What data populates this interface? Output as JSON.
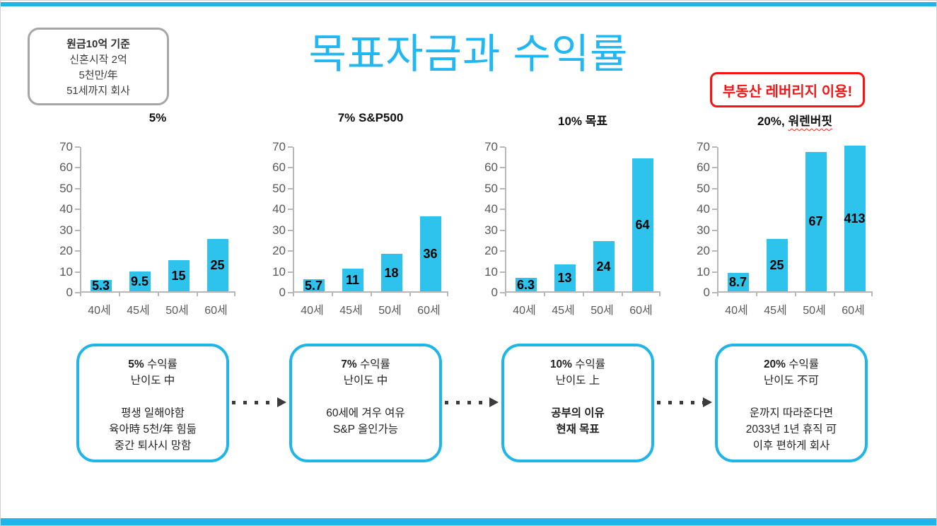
{
  "slide": {
    "title": "목표자금과 수익률",
    "colors": {
      "accent_cyan": "#1fb5e9",
      "bar_cyan": "#2dc3ed",
      "title_cyan": "#20b7f2",
      "alert_red": "#f81414",
      "axis_gray": "#b7b7b7",
      "tick_text_gray": "#595959",
      "info_border_gray": "#a6a6a6"
    }
  },
  "info_box": {
    "lines": [
      "원금10억 기준",
      "신혼시작 2억",
      "5천만/年",
      "51세까지 회사"
    ]
  },
  "alert_box": {
    "label": "부동산 레버리지 이용!"
  },
  "chart_data": [
    {
      "type": "bar",
      "title": "5%",
      "categories": [
        "40세",
        "45세",
        "50세",
        "60세"
      ],
      "values": [
        5.3,
        9.5,
        15,
        25
      ],
      "labels": [
        "5.3",
        "9.5",
        "15",
        "25"
      ],
      "ylim": [
        0,
        70
      ],
      "ytick_step": 10,
      "grid": false,
      "legend": null
    },
    {
      "type": "bar",
      "title": "7% S&P500",
      "categories": [
        "40세",
        "45세",
        "50세",
        "60세"
      ],
      "values": [
        5.7,
        11,
        18,
        36
      ],
      "labels": [
        "5.7",
        "11",
        "18",
        "36"
      ],
      "ylim": [
        0,
        70
      ],
      "ytick_step": 10,
      "grid": false,
      "legend": null
    },
    {
      "type": "bar",
      "title": "10% 목표",
      "categories": [
        "40세",
        "45세",
        "50세",
        "60세"
      ],
      "values": [
        6.3,
        13,
        24,
        64
      ],
      "labels": [
        "6.3",
        "13",
        "24",
        "64"
      ],
      "ylim": [
        0,
        70
      ],
      "ytick_step": 10,
      "grid": false,
      "legend": null
    },
    {
      "type": "bar",
      "title": "20%, 워렌버핏",
      "title_parts": [
        {
          "text": "20%, "
        },
        {
          "text": "워렌버핏",
          "misspelled": true
        }
      ],
      "categories": [
        "40세",
        "45세",
        "50세",
        "60세"
      ],
      "values": [
        8.7,
        25,
        67,
        413
      ],
      "labels": [
        "8.7",
        "25",
        "67",
        "413"
      ],
      "ylim": [
        0,
        70
      ],
      "ytick_step": 10,
      "grid": false,
      "legend": null,
      "note": "last bar clipped at axis max 70"
    }
  ],
  "flow_boxes": [
    {
      "headline_bold": "5%",
      "headline_rest": " 수익률",
      "difficulty": "난이도 中",
      "body": [
        "평생 일해야함",
        "육아時 5천/年 힘듦",
        "중간 퇴사시 망함"
      ],
      "body_bold": false
    },
    {
      "headline_bold": "7%",
      "headline_rest": " 수익률",
      "difficulty": "난이도 中",
      "body": [
        "60세에 겨우 여유",
        "S&P 올인가능"
      ],
      "body_bold": false
    },
    {
      "headline_bold": "10%",
      "headline_rest": " 수익률",
      "difficulty": "난이도 上",
      "body": [
        "공부의 이유",
        "현재 목표"
      ],
      "body_bold": true
    },
    {
      "headline_bold": "20%",
      "headline_rest": " 수익률",
      "difficulty": "난이도 不可",
      "body": [
        "운까지 따라준다면",
        "2033년 1년 휴직 可",
        "이후 편하게 회사"
      ],
      "body_bold": false
    }
  ]
}
